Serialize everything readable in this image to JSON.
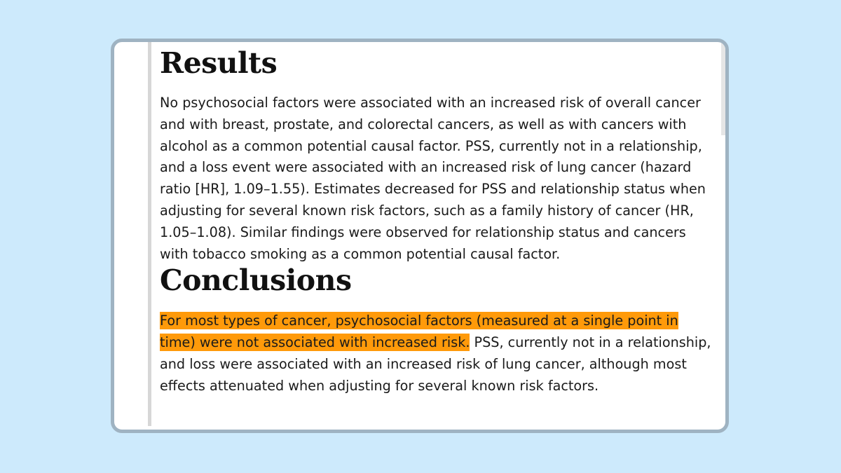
{
  "results": {
    "heading": "Results",
    "text": "No psychosocial factors were associated with an increased risk of overall cancer and with breast, prostate, and colorectal cancers, as well as with cancers with alcohol as a common potential causal factor. PSS, currently not in a relationship, and a loss event were associated with an increased risk of lung cancer (hazard ratio [HR], 1.09–1.55). Estimates decreased for PSS and relationship status when adjusting for several known risk factors, such as a family history of cancer (HR, 1.05–1.08). Similar findings were observed for relationship status and cancers with tobacco smoking as a common potential causal factor."
  },
  "conclusions": {
    "heading": "Conclusions",
    "highlighted_text": "For most types of cancer, psychosocial factors (measured at a single point in time) were not associated with increased risk.",
    "text": " PSS, currently not in a relationship, and loss were associated with an increased risk of lung cancer, although most effects attenuated when adjusting for several known risk factors."
  },
  "colors": {
    "highlight": "#ff9a0a",
    "background": "#cdeafc",
    "card_border": "#9fb3c2"
  }
}
